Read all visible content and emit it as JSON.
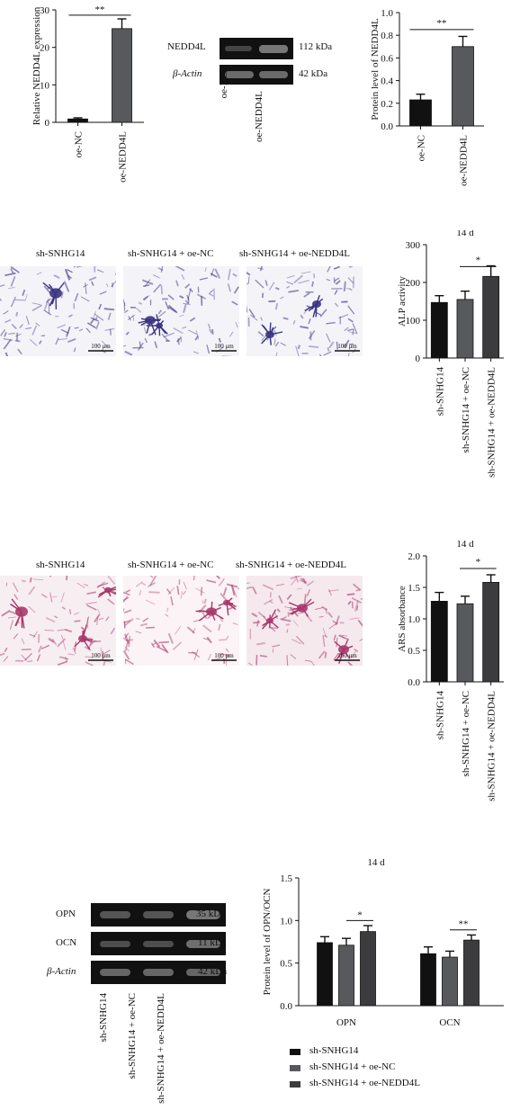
{
  "colors": {
    "black": "#111111",
    "mid": "#58595d",
    "dark": "#3c3c3e",
    "alp_stain": "#3a3480",
    "ars_stain": "#a8386a"
  },
  "panel_a": {
    "qpcr": {
      "type": "bar",
      "categories": [
        "oe-NC",
        "oe-NEDD4L"
      ],
      "values": [
        0.9,
        25.0
      ],
      "errors": [
        0.3,
        2.6
      ],
      "ylabel": "Relative NEDD4L expression",
      "ylim": [
        0,
        30
      ],
      "yticks": [
        "0",
        "10",
        "20",
        "30"
      ],
      "sig": "**"
    },
    "blot": {
      "rows": [
        "NEDD4L",
        "β-Actin"
      ],
      "sizes": [
        "112 kDa",
        "42 kDa"
      ],
      "lanes": [
        "oe-NC",
        "oe-NEDD4L"
      ]
    },
    "protein": {
      "type": "bar",
      "categories": [
        "oe-NC",
        "oe-NEDD4L"
      ],
      "values": [
        0.23,
        0.7
      ],
      "errors": [
        0.05,
        0.09
      ],
      "ylabel": "Protein level of NEDD4L",
      "ylim": [
        0,
        1.0
      ],
      "yticks": [
        "0.0",
        "0.2",
        "0.4",
        "0.6",
        "0.8",
        "1.0"
      ],
      "sig": "**"
    }
  },
  "panel_b": {
    "images": [
      "sh-SNHG14",
      "sh-SNHG14 + oe-NC",
      "sh-SNHG14 + oe-NEDD4L"
    ],
    "scale": "100 μm",
    "chart": {
      "type": "bar",
      "title": "14 d",
      "categories": [
        "sh-SNHG14",
        "sh-SNHG14 + oe-NC",
        "sh-SNHG14 + oe-NEDD4L"
      ],
      "values": [
        147,
        155,
        216
      ],
      "errors": [
        18,
        22,
        28
      ],
      "ylabel": "ALP activity",
      "ylim": [
        0,
        300
      ],
      "yticks": [
        "0",
        "100",
        "200",
        "300"
      ],
      "sig": "*"
    }
  },
  "panel_c": {
    "images": [
      "sh-SNHG14",
      "sh-SNHG14 + oe-NC",
      "sh-SNHG14 + oe-NEDD4L"
    ],
    "scale": "100 μm",
    "chart": {
      "type": "bar",
      "title": "14 d",
      "categories": [
        "sh-SNHG14",
        "sh-SNHG14 + oe-NC",
        "sh-SNHG14 + oe-NEDD4L"
      ],
      "values": [
        1.28,
        1.24,
        1.58
      ],
      "errors": [
        0.14,
        0.12,
        0.12
      ],
      "ylabel": "ARS absorbance",
      "ylim": [
        0,
        2.0
      ],
      "yticks": [
        "0.0",
        "0.5",
        "1.0",
        "1.5",
        "2.0"
      ],
      "sig": "*"
    }
  },
  "panel_d": {
    "blot": {
      "rows": [
        "OPN",
        "OCN",
        "β-Actin"
      ],
      "sizes": [
        "35 kDa",
        "11 kDa",
        "42 kDa"
      ],
      "lanes": [
        "sh-SNHG14",
        "sh-SNHG14 + oe-NC",
        "sh-SNHG14 + oe-NEDD4L"
      ]
    },
    "chart": {
      "type": "bar",
      "title": "14 d",
      "categories": [
        "OPN",
        "OCN"
      ],
      "series": [
        {
          "name": "sh-SNHG14",
          "values": [
            0.74,
            0.61
          ],
          "errors": [
            0.07,
            0.08
          ]
        },
        {
          "name": "sh-SNHG14 + oe-NC",
          "values": [
            0.71,
            0.57
          ],
          "errors": [
            0.08,
            0.07
          ]
        },
        {
          "name": "sh-SNHG14 + oe-NEDD4L",
          "values": [
            0.87,
            0.77
          ],
          "errors": [
            0.07,
            0.06
          ]
        }
      ],
      "ylabel": "Protein level of OPN/OCN",
      "ylim": [
        0,
        1.5
      ],
      "yticks": [
        "0.0",
        "0.5",
        "1.0",
        "1.5"
      ],
      "sig": [
        "*",
        "**"
      ],
      "legend_position": "bottom"
    }
  }
}
